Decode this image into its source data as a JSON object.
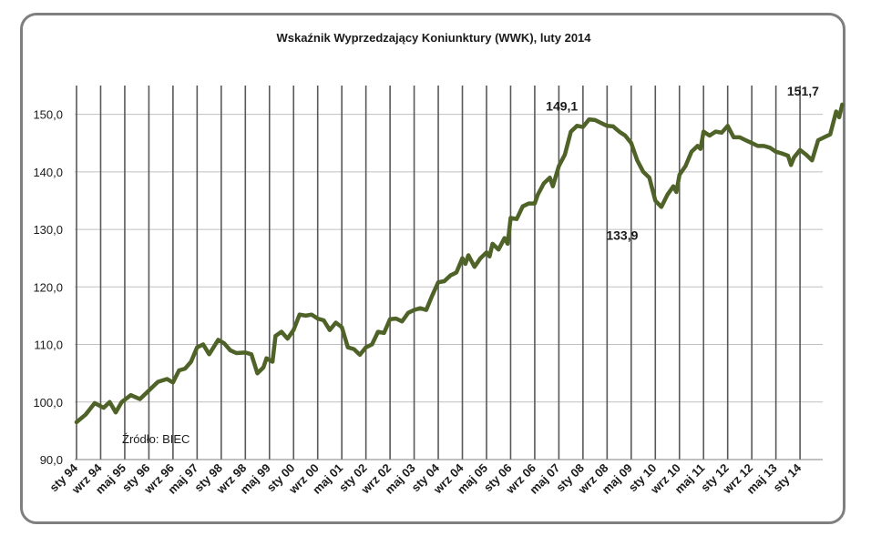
{
  "chart_data": {
    "type": "line",
    "title": "Wskaźnik Wyprzedzający Koniunktury (WWK), luty 2014",
    "source_note": "Źródło: BIEC",
    "xlabel": "",
    "ylabel": "",
    "ylim": [
      90,
      155
    ],
    "yticks": [
      "90,0",
      "100,0",
      "110,0",
      "120,0",
      "130,0",
      "140,0",
      "150,0"
    ],
    "ytick_values": [
      90,
      100,
      110,
      120,
      130,
      140,
      150
    ],
    "xticks": [
      "sty 94",
      "wrz 94",
      "maj 95",
      "sty 96",
      "wrz 96",
      "maj 97",
      "sty 98",
      "wrz 98",
      "maj 99",
      "sty 00",
      "wrz 00",
      "maj 01",
      "sty 02",
      "wrz 02",
      "maj 03",
      "sty 04",
      "wrz 04",
      "maj 05",
      "sty 06",
      "wrz 06",
      "maj 07",
      "sty 08",
      "wrz 08",
      "maj 09",
      "sty 10",
      "wrz 10",
      "maj 11",
      "sty 12",
      "wrz 12",
      "maj 13",
      "sty 14"
    ],
    "grid": "vertical and horizontal",
    "line_color": "#4f6228",
    "annotations": [
      {
        "label": "149,1",
        "x_month": 161,
        "y": 149.1,
        "position": "above"
      },
      {
        "label": "133,9",
        "x_month": 181,
        "y": 133.9,
        "position": "below"
      },
      {
        "label": "151,7",
        "x_month": 241,
        "y": 151.7,
        "position": "above"
      }
    ],
    "series": [
      {
        "start": "sty 94",
        "frequency": "monthly",
        "keypoints": [
          [
            0,
            96.5
          ],
          [
            3,
            97.8
          ],
          [
            6,
            99.8
          ],
          [
            9,
            99.0
          ],
          [
            11,
            100.0
          ],
          [
            13,
            98.2
          ],
          [
            15,
            100.0
          ],
          [
            18,
            101.2
          ],
          [
            21,
            100.5
          ],
          [
            24,
            102.0
          ],
          [
            27,
            103.5
          ],
          [
            30,
            104.0
          ],
          [
            32,
            103.4
          ],
          [
            34,
            105.5
          ],
          [
            36,
            105.8
          ],
          [
            38,
            107.0
          ],
          [
            40,
            109.5
          ],
          [
            42,
            110.0
          ],
          [
            44,
            108.3
          ],
          [
            47,
            110.8
          ],
          [
            49,
            110.2
          ],
          [
            51,
            109.0
          ],
          [
            53,
            108.5
          ],
          [
            56,
            108.6
          ],
          [
            58,
            108.3
          ],
          [
            60,
            105.0
          ],
          [
            62,
            106.0
          ],
          [
            63,
            107.6
          ],
          [
            65,
            107.0
          ],
          [
            66,
            111.5
          ],
          [
            68,
            112.2
          ],
          [
            70,
            111.0
          ],
          [
            72,
            112.5
          ],
          [
            74,
            115.2
          ],
          [
            76,
            115.0
          ],
          [
            78,
            115.2
          ],
          [
            80,
            114.5
          ],
          [
            82,
            114.2
          ],
          [
            84,
            112.5
          ],
          [
            86,
            113.8
          ],
          [
            88,
            113.0
          ],
          [
            90,
            109.5
          ],
          [
            92,
            109.2
          ],
          [
            94,
            108.2
          ],
          [
            96,
            109.5
          ],
          [
            98,
            110.0
          ],
          [
            100,
            112.2
          ],
          [
            102,
            112.0
          ],
          [
            104,
            114.4
          ],
          [
            106,
            114.5
          ],
          [
            108,
            114.0
          ],
          [
            110,
            115.5
          ],
          [
            112,
            116.0
          ],
          [
            114,
            116.3
          ],
          [
            116,
            116.0
          ],
          [
            118,
            118.5
          ],
          [
            120,
            120.8
          ],
          [
            122,
            121.0
          ],
          [
            124,
            122.0
          ],
          [
            126,
            122.5
          ],
          [
            128,
            125.0
          ],
          [
            129,
            124.0
          ],
          [
            130,
            125.5
          ],
          [
            132,
            123.5
          ],
          [
            134,
            125.0
          ],
          [
            136,
            126.0
          ],
          [
            137,
            125.3
          ],
          [
            138,
            127.5
          ],
          [
            140,
            126.5
          ],
          [
            142,
            128.5
          ],
          [
            143,
            127.5
          ],
          [
            144,
            132.0
          ],
          [
            146,
            131.8
          ],
          [
            148,
            134.0
          ],
          [
            150,
            134.5
          ],
          [
            152,
            134.5
          ],
          [
            153,
            136.0
          ],
          [
            155,
            138.0
          ],
          [
            157,
            139.0
          ],
          [
            158,
            137.5
          ],
          [
            160,
            141.0
          ],
          [
            162,
            143.0
          ],
          [
            164,
            147.0
          ],
          [
            166,
            148.0
          ],
          [
            168,
            147.8
          ],
          [
            170,
            149.1
          ],
          [
            172,
            149.0
          ],
          [
            174,
            148.5
          ],
          [
            176,
            148.0
          ],
          [
            178,
            147.9
          ],
          [
            180,
            147.0
          ],
          [
            182,
            146.3
          ],
          [
            184,
            145.0
          ],
          [
            186,
            142.0
          ],
          [
            188,
            140.0
          ],
          [
            190,
            139.0
          ],
          [
            192,
            135.0
          ],
          [
            194,
            133.9
          ],
          [
            196,
            136.0
          ],
          [
            198,
            137.5
          ],
          [
            199,
            136.5
          ],
          [
            200,
            139.5
          ],
          [
            202,
            141.0
          ],
          [
            204,
            143.5
          ],
          [
            206,
            144.5
          ],
          [
            207,
            144.0
          ],
          [
            208,
            147.0
          ],
          [
            210,
            146.3
          ],
          [
            212,
            147.0
          ],
          [
            214,
            146.8
          ],
          [
            216,
            148.0
          ],
          [
            218,
            146.0
          ],
          [
            220,
            146.0
          ],
          [
            222,
            145.5
          ],
          [
            224,
            145.0
          ],
          [
            226,
            144.5
          ],
          [
            228,
            144.5
          ],
          [
            230,
            144.2
          ],
          [
            232,
            143.5
          ],
          [
            234,
            143.2
          ],
          [
            236,
            142.8
          ],
          [
            237,
            141.2
          ],
          [
            238,
            142.5
          ],
          [
            240,
            143.8
          ],
          [
            242,
            143.0
          ],
          [
            244,
            142.0
          ],
          [
            246,
            145.5
          ],
          [
            248,
            146.0
          ],
          [
            250,
            146.5
          ],
          [
            252,
            150.5
          ],
          [
            253,
            149.5
          ],
          [
            254,
            151.7
          ]
        ]
      }
    ]
  }
}
